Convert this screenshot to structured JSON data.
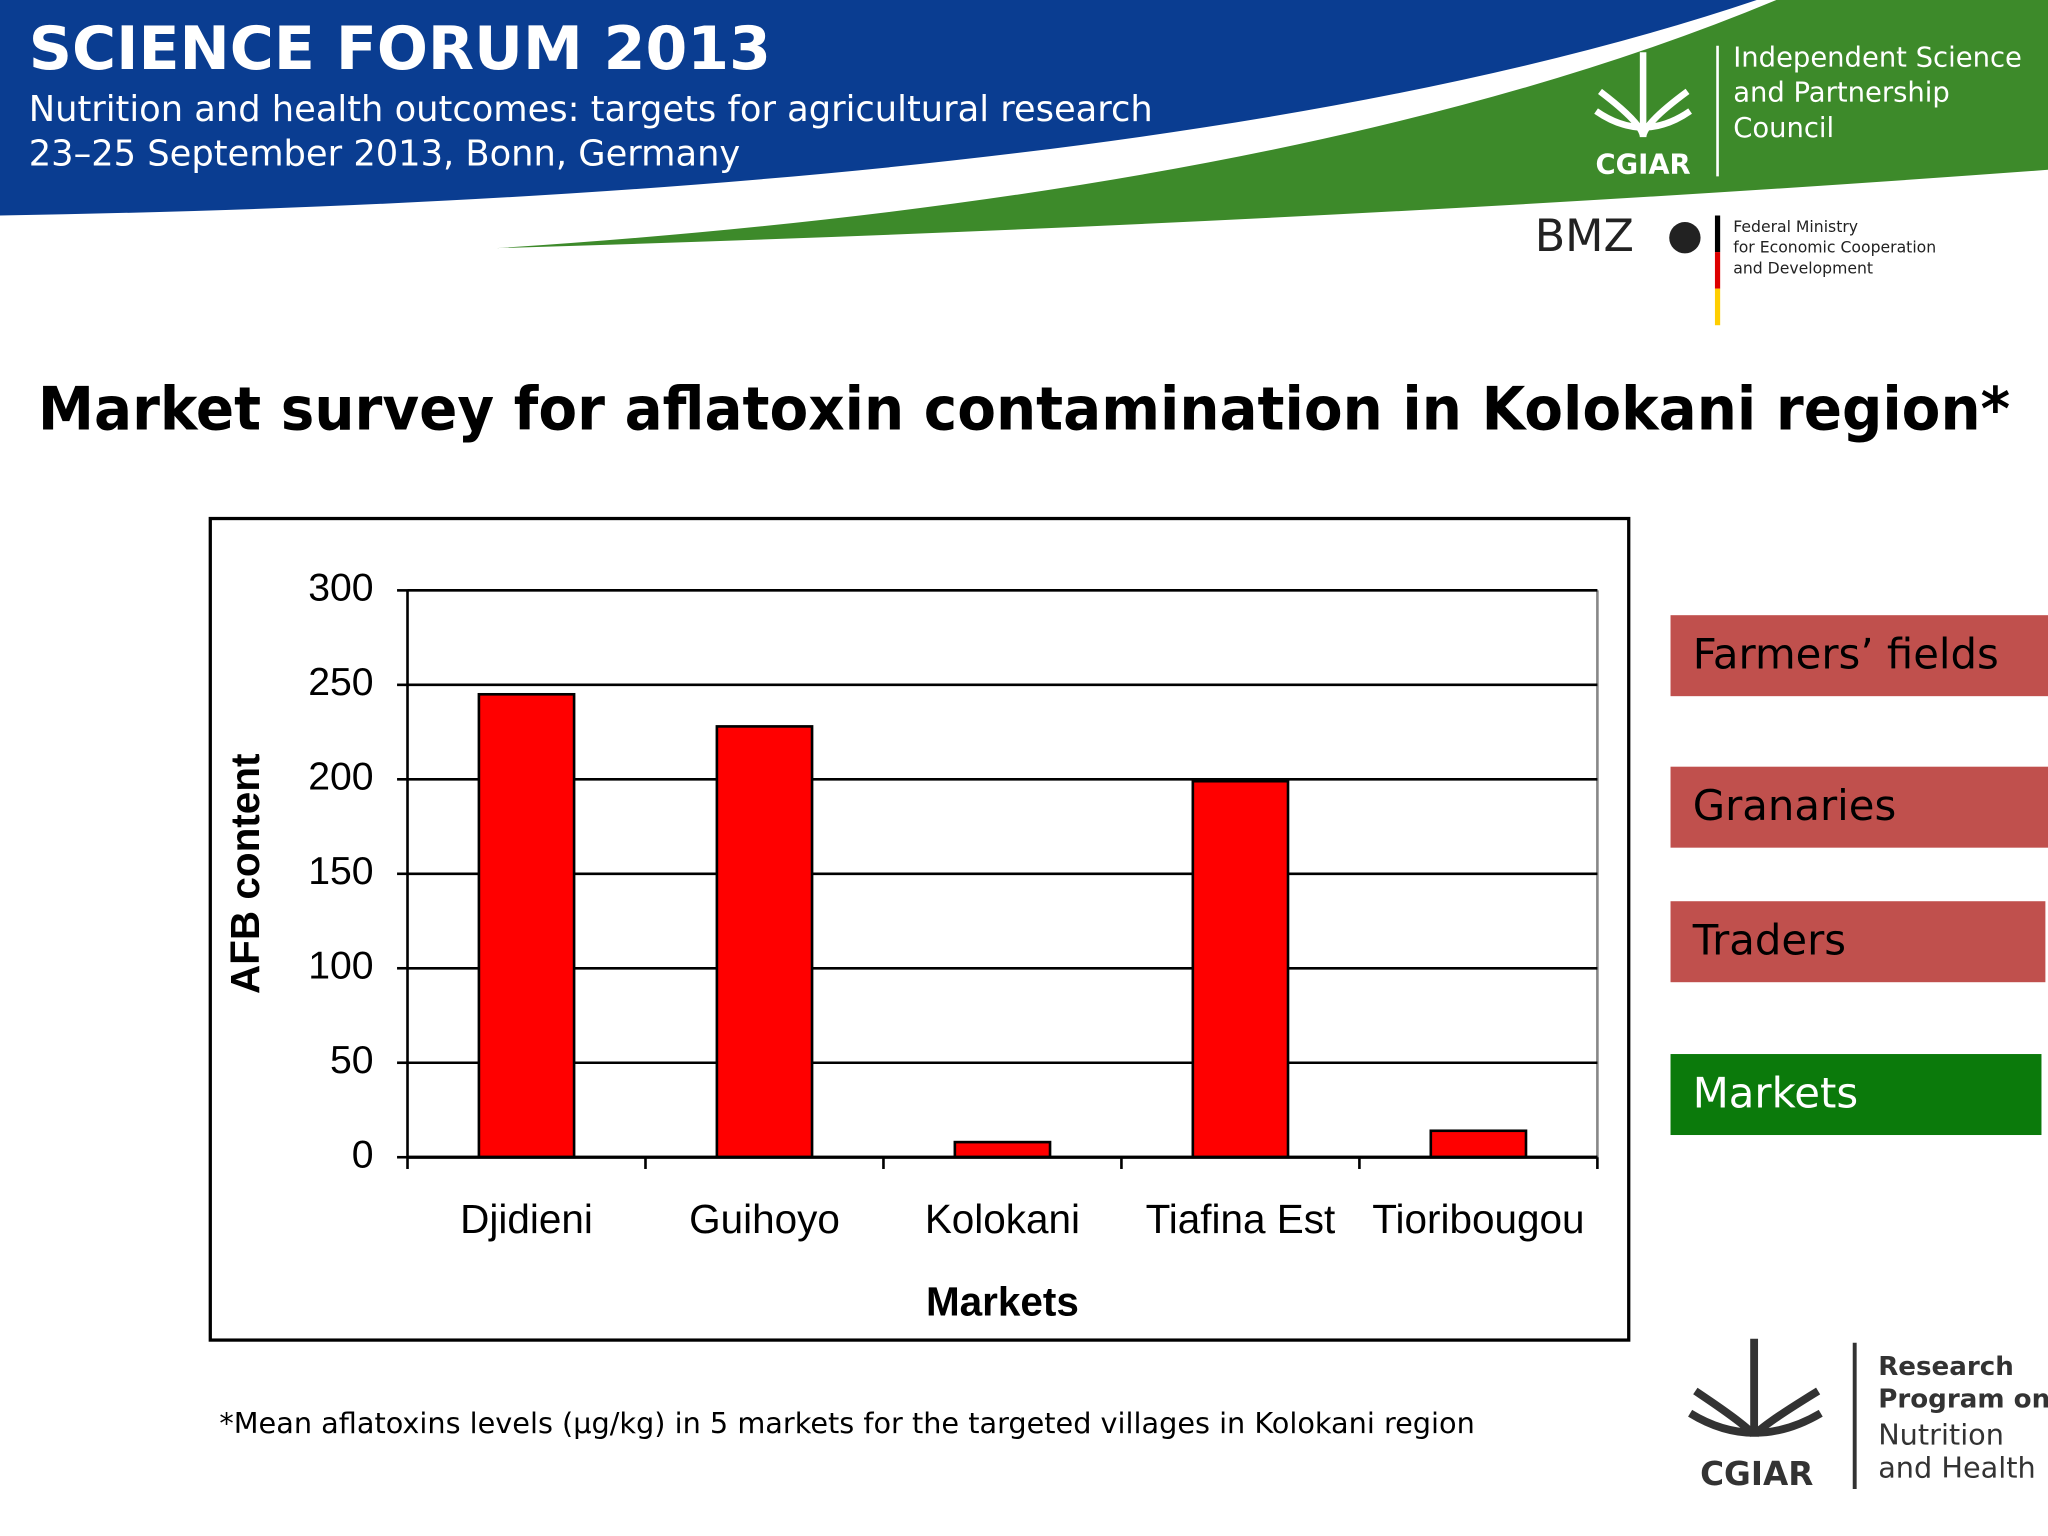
{
  "header": {
    "title": "SCIENCE FORUM 2013",
    "subtitle": "Nutrition and health outcomes: targets for agricultural research",
    "dates": "23–25 September 2013, Bonn, Germany",
    "isp_council": [
      "Independent Science",
      "and Partnership",
      "Council"
    ],
    "cgiar": "CGIAR",
    "bmz": "BMZ",
    "ministry": [
      "Federal Ministry",
      "for Economic Cooperation",
      "and Development"
    ]
  },
  "slide_title": "Market survey for aflatoxin contamination in Kolokani region*",
  "chart_data": {
    "type": "bar",
    "x_label": "Markets",
    "y_label": "AFB content",
    "categories": [
      "Djidieni",
      "Guihoyo",
      "Kolokani",
      "Tiafina Est",
      "Tioribougou"
    ],
    "values": [
      245,
      228,
      8,
      199,
      14
    ],
    "color": "#ff0000",
    "ylim": [
      0,
      300
    ],
    "yticks": [
      0,
      50,
      100,
      150,
      200,
      250,
      300
    ],
    "grid": true
  },
  "side_boxes": [
    "Farmers’ fields",
    "Granaries",
    "Traders",
    "Markets"
  ],
  "footnote": "*Mean aflatoxins levels (µg/kg) in 5 markets for the targeted villages in Kolokani region",
  "footer_logo": {
    "cgiar": "CGIAR",
    "program": [
      "Research",
      "Program on",
      "Nutrition",
      "and Health"
    ]
  }
}
